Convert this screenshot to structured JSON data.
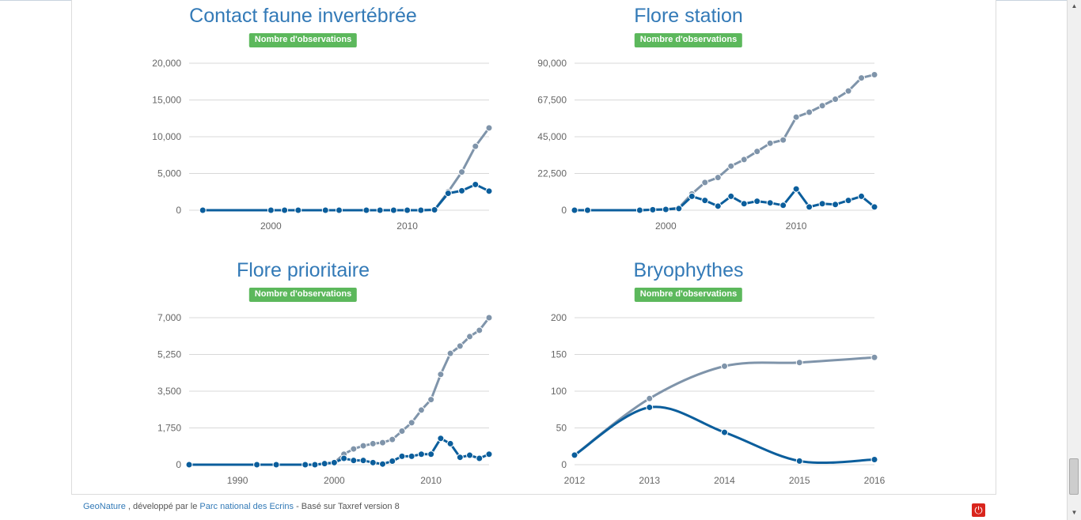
{
  "chart_data": [
    {
      "type": "line",
      "title": "Contact faune invertébrée",
      "badge": "Nombre d'observations",
      "ylim": [
        0,
        20000
      ],
      "yticks": [
        "0",
        "5,000",
        "10,000",
        "15,000",
        "20,000"
      ],
      "xlim": [
        1994,
        2016
      ],
      "xticks": [
        {
          "v": 2000,
          "label": "2000"
        },
        {
          "v": 2010,
          "label": "2010"
        }
      ],
      "grid": true,
      "series": [
        {
          "color": "#7f94aa",
          "x": [
            1995,
            2000,
            2001,
            2002,
            2004,
            2005,
            2007,
            2008,
            2009,
            2010,
            2011,
            2012,
            2013,
            2014,
            2015,
            2016
          ],
          "y": [
            0,
            0,
            0,
            0,
            0,
            0,
            0,
            0,
            0,
            0,
            0,
            50,
            2500,
            5200,
            8700,
            11200
          ]
        },
        {
          "color": "#0b5e9c",
          "x": [
            1995,
            2000,
            2001,
            2002,
            2004,
            2005,
            2007,
            2008,
            2009,
            2010,
            2011,
            2012,
            2013,
            2014,
            2015,
            2016
          ],
          "y": [
            0,
            0,
            0,
            0,
            0,
            0,
            0,
            0,
            0,
            0,
            0,
            50,
            2300,
            2650,
            3500,
            2600
          ]
        }
      ]
    },
    {
      "type": "line",
      "title": "Flore station",
      "badge": "Nombre d'observations",
      "ylim": [
        0,
        90000
      ],
      "yticks": [
        "0",
        "22,500",
        "45,000",
        "67,500",
        "90,000"
      ],
      "xlim": [
        1993,
        2016
      ],
      "xticks": [
        {
          "v": 2000,
          "label": "2000"
        },
        {
          "v": 2010,
          "label": "2010"
        }
      ],
      "grid": true,
      "series": [
        {
          "color": "#7f94aa",
          "x": [
            1993,
            1994,
            1998,
            1999,
            2000,
            2001,
            2002,
            2003,
            2004,
            2005,
            2006,
            2007,
            2008,
            2009,
            2010,
            2011,
            2012,
            2013,
            2014,
            2015,
            2016
          ],
          "y": [
            0,
            0,
            0,
            300,
            500,
            1500,
            10000,
            17000,
            20000,
            27000,
            31000,
            36000,
            41000,
            43000,
            57000,
            60000,
            64000,
            68000,
            73000,
            81000,
            83000
          ]
        },
        {
          "color": "#0b5e9c",
          "x": [
            1993,
            1994,
            1998,
            1999,
            2000,
            2001,
            2002,
            2003,
            2004,
            2005,
            2006,
            2007,
            2008,
            2009,
            2010,
            2011,
            2012,
            2013,
            2014,
            2015,
            2016
          ],
          "y": [
            0,
            0,
            0,
            300,
            500,
            1000,
            8500,
            6000,
            2500,
            8500,
            4000,
            5500,
            4500,
            3000,
            13000,
            2000,
            4000,
            3500,
            6000,
            8500,
            2000
          ]
        }
      ]
    },
    {
      "type": "line",
      "title": "Flore prioritaire",
      "badge": "Nombre d'observations",
      "ylim": [
        0,
        7000
      ],
      "yticks": [
        "0",
        "1,750",
        "3,500",
        "5,250",
        "7,000"
      ],
      "xlim": [
        1985,
        2016
      ],
      "xticks": [
        {
          "v": 1990,
          "label": "1990"
        },
        {
          "v": 2000,
          "label": "2000"
        },
        {
          "v": 2010,
          "label": "2010"
        }
      ],
      "grid": true,
      "series": [
        {
          "color": "#7f94aa",
          "x": [
            1985,
            1992,
            1994,
            1997,
            1998,
            1999,
            2000,
            2001,
            2002,
            2003,
            2004,
            2005,
            2006,
            2007,
            2008,
            2009,
            2010,
            2011,
            2012,
            2013,
            2014,
            2015,
            2016
          ],
          "y": [
            0,
            0,
            0,
            0,
            0,
            50,
            100,
            500,
            750,
            900,
            1000,
            1050,
            1200,
            1600,
            2000,
            2600,
            3100,
            4300,
            5300,
            5650,
            6100,
            6400,
            7000
          ]
        },
        {
          "color": "#0b5e9c",
          "x": [
            1985,
            1992,
            1994,
            1997,
            1998,
            1999,
            2000,
            2001,
            2002,
            2003,
            2004,
            2005,
            2006,
            2007,
            2008,
            2009,
            2010,
            2011,
            2012,
            2013,
            2014,
            2015,
            2016
          ],
          "y": [
            0,
            0,
            0,
            0,
            0,
            50,
            100,
            300,
            200,
            200,
            100,
            30,
            170,
            400,
            400,
            500,
            500,
            1250,
            1000,
            350,
            450,
            300,
            500
          ]
        }
      ]
    },
    {
      "type": "line",
      "title": "Bryophythes",
      "badge": "Nombre d'observations",
      "ylim": [
        0,
        200
      ],
      "yticks": [
        "0",
        "50",
        "100",
        "150",
        "200"
      ],
      "xlim": [
        2012,
        2016
      ],
      "xticks": [
        {
          "v": 2012,
          "label": "2012"
        },
        {
          "v": 2013,
          "label": "2013"
        },
        {
          "v": 2014,
          "label": "2014"
        },
        {
          "v": 2015,
          "label": "2015"
        },
        {
          "v": 2016,
          "label": "2016"
        }
      ],
      "grid": true,
      "smooth": true,
      "series": [
        {
          "color": "#7f94aa",
          "x": [
            2012,
            2013,
            2014,
            2015,
            2016
          ],
          "y": [
            13,
            90,
            134,
            139,
            146
          ]
        },
        {
          "color": "#0b5e9c",
          "x": [
            2012,
            2013,
            2014,
            2015,
            2016
          ],
          "y": [
            13,
            78,
            44,
            5,
            7
          ]
        }
      ]
    }
  ],
  "footer": {
    "brand": "GeoNature",
    "text1": " , développé par le ",
    "org": "Parc national des Ecrins",
    "text2": " - Basé sur Taxref version 8"
  },
  "icons": {
    "power": "power-icon"
  }
}
